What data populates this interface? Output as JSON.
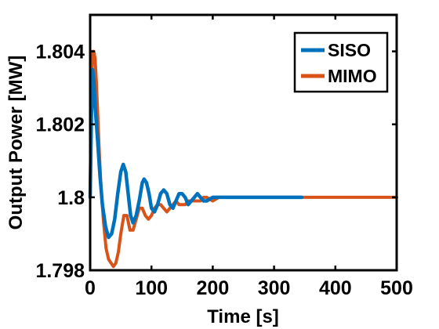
{
  "chart_data": {
    "type": "line",
    "title": "",
    "xlabel": "Time [s]",
    "ylabel": "Output Power [MW]",
    "xlim": [
      0,
      500
    ],
    "ylim": [
      1.798,
      1.805
    ],
    "xticks": [
      0,
      100,
      200,
      300,
      400,
      500
    ],
    "xtick_labels": [
      "0",
      "100",
      "200",
      "300",
      "400",
      "500"
    ],
    "yticks": [
      1.798,
      1.8,
      1.802,
      1.804
    ],
    "ytick_labels": [
      "1.798",
      "1.8",
      "1.802",
      "1.804"
    ],
    "grid": false,
    "legend_position": "top-right",
    "series": [
      {
        "name": "SISO",
        "color": "#0072BD",
        "x": [
          0,
          2,
          4,
          6,
          8,
          12,
          16,
          20,
          25,
          30,
          35,
          40,
          45,
          50,
          54,
          58,
          62,
          66,
          70,
          75,
          80,
          85,
          88,
          92,
          96,
          100,
          105,
          110,
          115,
          120,
          125,
          130,
          135,
          140,
          145,
          150,
          155,
          160,
          165,
          170,
          175,
          180,
          185,
          190,
          200,
          210,
          220,
          240,
          260,
          280,
          300,
          320,
          345
        ],
        "y": [
          1.8,
          1.8022,
          1.8035,
          1.8032,
          1.8025,
          1.8016,
          1.8006,
          1.7998,
          1.7992,
          1.7989,
          1.799,
          1.7994,
          1.8001,
          1.8007,
          1.8009,
          1.8007,
          1.8001,
          1.7995,
          1.7993,
          1.7995,
          1.7999,
          1.8004,
          1.8005,
          1.8004,
          1.8001,
          1.7997,
          1.7996,
          1.7998,
          1.8001,
          1.8002,
          1.8001,
          1.7998,
          1.7997,
          1.7999,
          1.8001,
          1.8001,
          1.8,
          1.7998,
          1.7999,
          1.8,
          1.8001,
          1.8,
          1.7999,
          1.7999,
          1.8,
          1.8,
          1.8,
          1.8,
          1.8,
          1.8,
          1.8,
          1.8,
          1.8
        ]
      },
      {
        "name": "MIMO",
        "color": "#D95319",
        "x": [
          0,
          2,
          4,
          6,
          8,
          10,
          12,
          15,
          18,
          22,
          26,
          30,
          34,
          38,
          42,
          46,
          50,
          55,
          60,
          65,
          70,
          75,
          80,
          85,
          90,
          95,
          100,
          105,
          110,
          115,
          120,
          125,
          130,
          135,
          140,
          145,
          150,
          155,
          160,
          165,
          170,
          175,
          180,
          185,
          190,
          200,
          210,
          220,
          240,
          260,
          280,
          300,
          350,
          400,
          450,
          500
        ],
        "y": [
          1.8,
          1.8028,
          1.804,
          1.804,
          1.8038,
          1.8032,
          1.8024,
          1.8012,
          1.8002,
          1.7993,
          1.7986,
          1.7983,
          1.7982,
          1.7981,
          1.7982,
          1.7985,
          1.799,
          1.7995,
          1.7995,
          1.7991,
          1.7991,
          1.7994,
          1.7997,
          1.7997,
          1.7995,
          1.7994,
          1.7995,
          1.7997,
          1.7998,
          1.7998,
          1.7997,
          1.7996,
          1.7997,
          1.7998,
          1.7999,
          1.7998,
          1.7998,
          1.7998,
          1.7999,
          1.7999,
          1.7999,
          1.7999,
          1.7999,
          1.8,
          1.8,
          1.7999,
          1.8,
          1.8,
          1.8,
          1.8,
          1.8,
          1.8,
          1.8,
          1.8,
          1.8,
          1.8
        ]
      }
    ]
  }
}
